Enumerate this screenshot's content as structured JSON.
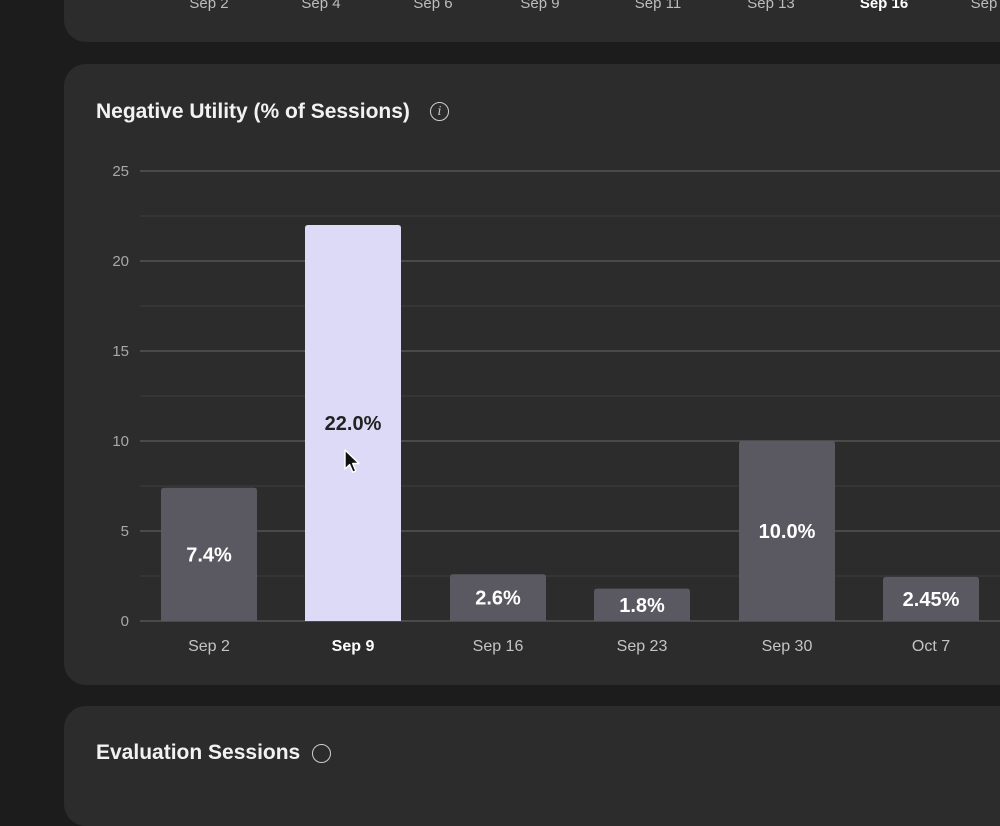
{
  "top_chart": {
    "ticks": [
      "Sep 2",
      "Sep 4",
      "Sep 6",
      "Sep 9",
      "Sep 11",
      "Sep 13",
      "Sep 16",
      "Sep"
    ],
    "active_tick": "Sep 16"
  },
  "chart_data": {
    "type": "bar",
    "title": "Negative Utility (% of Sessions)",
    "xlabel": "",
    "ylabel": "",
    "categories": [
      "Sep 2",
      "Sep 9",
      "Sep 16",
      "Sep 23",
      "Sep 30",
      "Oct 7"
    ],
    "values": [
      7.4,
      22.0,
      2.6,
      1.8,
      10.0,
      2.45
    ],
    "data_labels": [
      "7.4%",
      "22.0%",
      "2.6%",
      "1.8%",
      "10.0%",
      "2.45%"
    ],
    "ylim": [
      0,
      25
    ],
    "yticks": [
      0,
      5,
      10,
      15,
      20,
      25
    ],
    "grid": true,
    "highlighted_category": "Sep 9"
  },
  "bottom_card": {
    "title": "Evaluation Sessions"
  },
  "colors": {
    "bar": "#5a5860",
    "bar_highlight": "#dddaf7",
    "grid": "#5c5c5c",
    "label_on_dark": "#ffffff",
    "label_on_light": "#222222"
  }
}
